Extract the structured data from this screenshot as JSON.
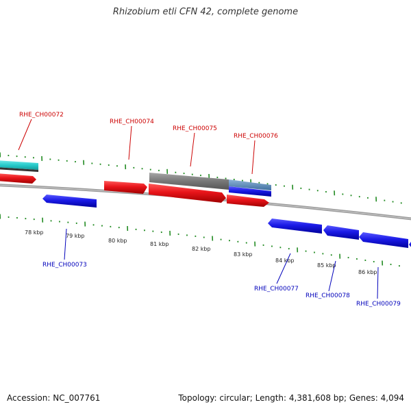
{
  "title": "Rhizobium etli CFN 42, complete genome",
  "footer": {
    "accession": "Accession: NC_007761",
    "summary": "Topology: circular; Length: 4,381,608 bp; Genes: 4,094"
  },
  "colors": {
    "forward_cds": "#e8141a",
    "reverse_cds": "#1a1ae6",
    "rna": "#27cbcb",
    "other": "#777777",
    "label_forward": "#cc0000",
    "label_reverse": "#0000bb",
    "ticks": "#228b22",
    "backbone": "#888888"
  },
  "kbp_labels": [
    "78 kbp",
    "79 kbp",
    "80 kbp",
    "81 kbp",
    "82 kbp",
    "83 kbp",
    "84 kbp",
    "85 kbp",
    "86 kbp"
  ],
  "gene_labels": [
    {
      "text": "RHE_CH00072",
      "strand": "forward"
    },
    {
      "text": "RHE_CH00074",
      "strand": "forward"
    },
    {
      "text": "RHE_CH00075",
      "strand": "forward"
    },
    {
      "text": "RHE_CH00076",
      "strand": "forward"
    },
    {
      "text": "RHE_CH00073",
      "strand": "reverse"
    },
    {
      "text": "RHE_CH00077",
      "strand": "reverse"
    },
    {
      "text": "RHE_CH00078",
      "strand": "reverse"
    },
    {
      "text": "RHE_CH00079",
      "strand": "reverse"
    }
  ]
}
